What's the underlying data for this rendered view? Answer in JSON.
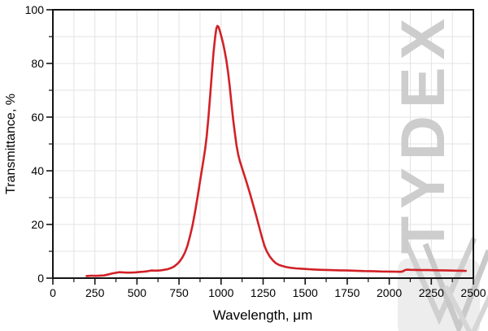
{
  "watermark": {
    "text": "TYDEX",
    "color": "#cdcdcd"
  },
  "logo": {
    "description": "tydex-chevron-logo",
    "square_color": "#ececec",
    "chevron_color": "#c9c9c9"
  },
  "axes": {
    "x_title": "Wavelength, μm",
    "y_title": "Transmittance, %",
    "x_tick_labels": [
      "0",
      "250",
      "500",
      "750",
      "1000",
      "1250",
      "1500",
      "1750",
      "2000",
      "2250",
      "2500"
    ],
    "y_tick_labels": [
      "0",
      "20",
      "40",
      "60",
      "80",
      "100"
    ]
  },
  "chart_data": {
    "type": "line",
    "title": "",
    "xlabel": "Wavelength, μm",
    "ylabel": "Transmittance, %",
    "xlim": [
      0,
      2500
    ],
    "ylim": [
      0,
      100
    ],
    "x_major_ticks": [
      0,
      250,
      500,
      750,
      1000,
      1250,
      1500,
      1750,
      2000,
      2250,
      2500
    ],
    "y_major_ticks": [
      0,
      20,
      40,
      60,
      80,
      100
    ],
    "x_minor_step": 125,
    "y_minor_step": 10,
    "grid": "major+minor, light gray",
    "legend": "none",
    "line_color": "#d22126",
    "frame_color": "#141414",
    "grid_color": "#e3e3e3",
    "series": [
      {
        "name": "transmittance",
        "x": [
          200,
          230,
          255,
          280,
          305,
          325,
          350,
          375,
          395,
          415,
          440,
          465,
          490,
          515,
          540,
          560,
          585,
          610,
          635,
          660,
          680,
          700,
          720,
          740,
          755,
          770,
          785,
          800,
          815,
          830,
          845,
          860,
          875,
          890,
          905,
          915,
          925,
          935,
          945,
          955,
          965,
          972,
          978,
          985,
          993,
          1002,
          1012,
          1022,
          1032,
          1042,
          1052,
          1062,
          1072,
          1082,
          1092,
          1102,
          1112,
          1125,
          1140,
          1155,
          1172,
          1190,
          1208,
          1225,
          1242,
          1258,
          1272,
          1290,
          1308,
          1325,
          1345,
          1365,
          1390,
          1415,
          1445,
          1480,
          1515,
          1555,
          1600,
          1650,
          1700,
          1750,
          1800,
          1850,
          1900,
          1950,
          2000,
          2035,
          2065,
          2080,
          2092,
          2105,
          2125,
          2155,
          2190,
          2230,
          2270,
          2310,
          2350,
          2395,
          2430,
          2455
        ],
        "y": [
          0.8,
          0.9,
          0.85,
          0.95,
          1.0,
          1.3,
          1.7,
          2.0,
          2.2,
          2.15,
          2.05,
          2.05,
          2.15,
          2.3,
          2.4,
          2.55,
          2.85,
          2.8,
          2.85,
          3.1,
          3.3,
          3.7,
          4.3,
          5.3,
          6.3,
          7.7,
          9.5,
          12,
          15.5,
          19.5,
          24.5,
          30,
          36,
          42,
          48,
          53,
          60,
          68,
          76,
          84,
          90,
          93,
          94,
          93.6,
          92,
          90,
          87.5,
          84.5,
          81,
          76.5,
          71,
          65,
          59,
          54,
          49.5,
          46,
          43.5,
          41,
          38,
          35,
          31.5,
          27.5,
          23.5,
          19.5,
          15.5,
          12,
          10,
          8,
          6.6,
          5.6,
          4.9,
          4.5,
          4.1,
          3.85,
          3.65,
          3.5,
          3.35,
          3.2,
          3.1,
          3.0,
          2.9,
          2.85,
          2.75,
          2.65,
          2.6,
          2.5,
          2.45,
          2.4,
          2.35,
          2.5,
          2.95,
          3.15,
          3.1,
          3.05,
          3.0,
          3.0,
          2.95,
          2.9,
          2.85,
          2.8,
          2.75,
          2.7
        ],
        "peak": {
          "wavelength_um": 978,
          "transmittance_pct": 94
        }
      }
    ]
  }
}
